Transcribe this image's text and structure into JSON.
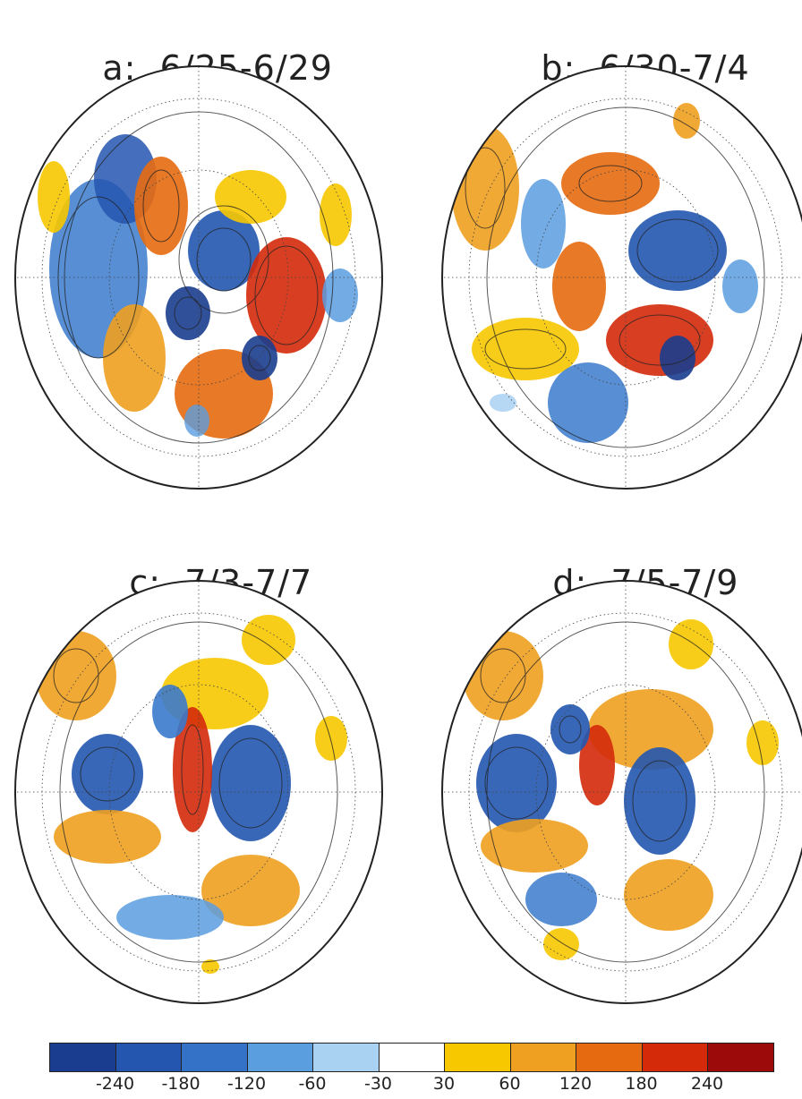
{
  "panels": [
    {
      "label": "a:",
      "dates": "6/25-6/29"
    },
    {
      "label": "b:",
      "dates": "6/30-7/4"
    },
    {
      "label": "c:",
      "dates": "7/3-7/7"
    },
    {
      "label": "d:",
      "dates": "7/5-7/9"
    }
  ],
  "colorbar": {
    "colors": [
      "#1a3d8f",
      "#2456b0",
      "#3472c8",
      "#5a9ee0",
      "#a9d1f2",
      "#ffffff",
      "#f7c800",
      "#f0a020",
      "#e66a10",
      "#d42a0a",
      "#9c0a0a"
    ],
    "labels": [
      "-240",
      "-180",
      "-120",
      "-60",
      "-30",
      "30",
      "60",
      "120",
      "180",
      "240"
    ]
  }
}
